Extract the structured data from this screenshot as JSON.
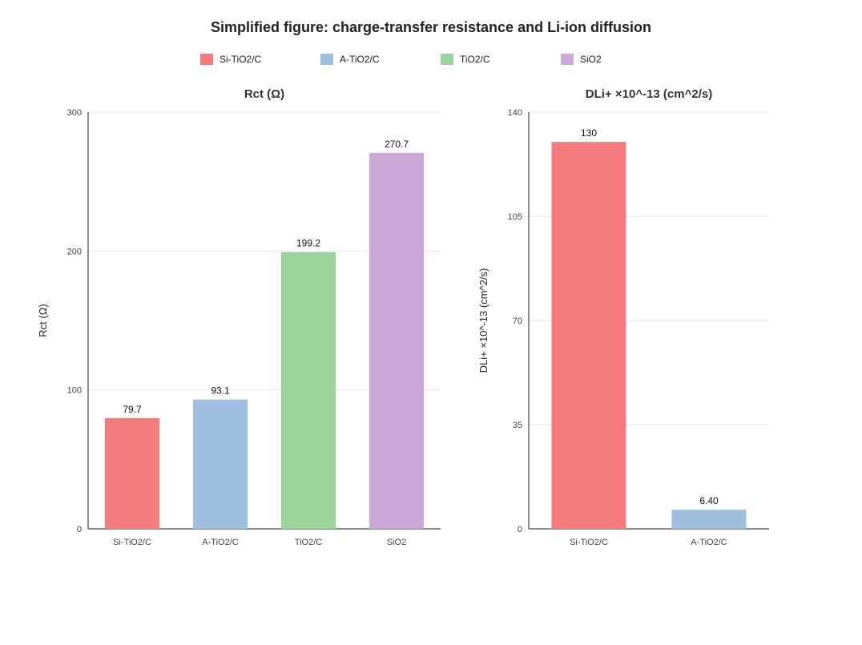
{
  "figure_title": "Simplified figure: charge-transfer resistance and Li-ion diffusion",
  "chart_data": [
    {
      "id": "rct",
      "type": "bar",
      "title": "Rct (Ω)",
      "xlabel": "",
      "ylabel": "Rct (Ω)",
      "categories": [
        "Si-TiO2/C",
        "A-TiO2/C",
        "TiO2/C",
        "SiO2"
      ],
      "values": [
        79.7,
        93.1,
        199.2,
        270.7
      ],
      "colors": [
        "#f47c7c",
        "#9fbfe0",
        "#9bd49b",
        "#cda8d9"
      ],
      "ylim": [
        0,
        300
      ],
      "ticks": [
        0,
        100,
        200,
        300
      ]
    },
    {
      "id": "diffusion",
      "type": "bar",
      "title": "DLi+ ×10^-13 (cm^2/s)",
      "xlabel": "",
      "ylabel": "DLi+ ×10^-13 (cm^2/s)",
      "categories": [
        "Si-TiO2/C",
        "A-TiO2/C"
      ],
      "values": [
        130,
        6.4
      ],
      "value_labels": [
        "130",
        "6.40"
      ],
      "colors": [
        "#f47c7c",
        "#9fbfe0"
      ],
      "ylim": [
        0,
        140
      ],
      "ticks": [
        0,
        35,
        70,
        105,
        140
      ]
    }
  ],
  "legend": [
    {
      "label": "Si-TiO2/C",
      "color": "#f47c7c"
    },
    {
      "label": "A-TiO2/C",
      "color": "#9fbfe0"
    },
    {
      "label": "TiO2/C",
      "color": "#9bd49b"
    },
    {
      "label": "SiO2",
      "color": "#cda8d9"
    }
  ]
}
